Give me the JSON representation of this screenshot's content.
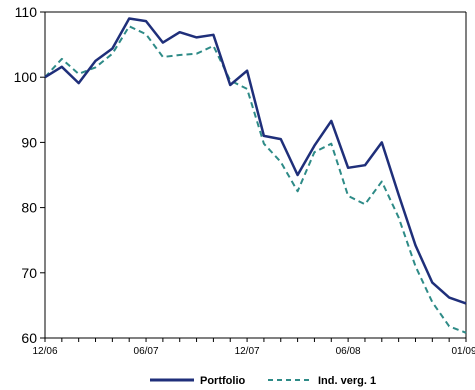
{
  "chart_data": {
    "type": "line",
    "title": "",
    "xlabel": "",
    "ylabel": "",
    "ylim": [
      60,
      110
    ],
    "yticks": [
      "60",
      "70",
      "80",
      "90",
      "100",
      "110"
    ],
    "xtick_labels": [
      "12/06",
      "06/07",
      "12/07",
      "06/08",
      "01/09"
    ],
    "grid": false,
    "legend_position": "bottom",
    "series": [
      {
        "name": "Portfolio",
        "color": "#1f2f7a",
        "style": "solid",
        "values": [
          100.0,
          101.6,
          99.1,
          102.5,
          104.4,
          109.0,
          108.6,
          105.3,
          106.9,
          106.1,
          106.5,
          98.8,
          101.0,
          91.0,
          90.5,
          85.0,
          89.5,
          93.3,
          86.1,
          86.5,
          90.0,
          82.0,
          74.2,
          68.5,
          66.2,
          65.3
        ]
      },
      {
        "name": "Ind. verg. 1",
        "color": "#2e8b87",
        "style": "dashed",
        "values": [
          100.0,
          102.8,
          100.5,
          101.5,
          103.6,
          107.8,
          106.6,
          103.1,
          103.4,
          103.6,
          104.8,
          99.5,
          98.2,
          89.8,
          87.0,
          82.5,
          88.5,
          89.8,
          81.8,
          80.5,
          84.0,
          78.5,
          71.0,
          65.5,
          61.8,
          60.8
        ]
      }
    ]
  }
}
